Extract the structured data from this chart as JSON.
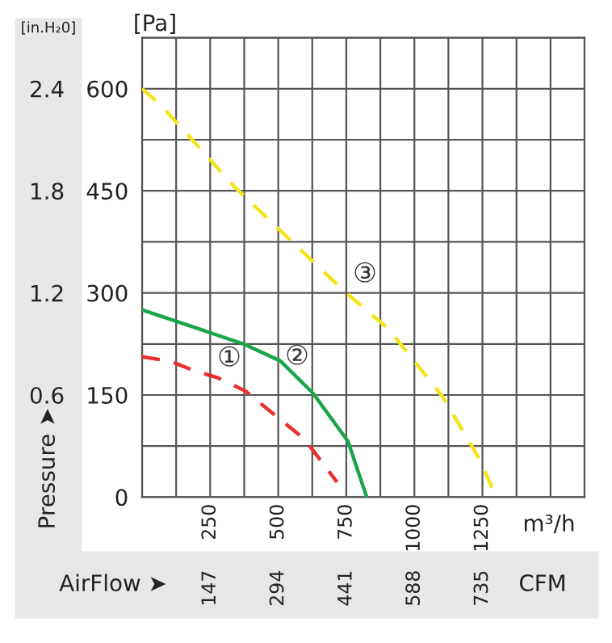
{
  "chart_data": {
    "type": "line",
    "xlabel": "m³/h",
    "x2label": "CFM",
    "ylabel": "[Pa]",
    "y2label": "[in.H₂0]",
    "xlim": [
      0,
      1625
    ],
    "xticks": [
      250,
      500,
      750,
      1000,
      1250
    ],
    "x2lim": [
      0,
      955.5
    ],
    "x2ticks": [
      147,
      294,
      441,
      588,
      735
    ],
    "ylim": [
      0,
      675
    ],
    "yticks": [
      0,
      150,
      300,
      450,
      600
    ],
    "y2lim": [
      0,
      2.7
    ],
    "y2ticks": [
      0.6,
      1.2,
      1.8,
      2.4
    ],
    "grid": true,
    "marker": "none",
    "series": [
      {
        "color": "#e8302f",
        "line_style": "dashed",
        "x": [
          0,
          101,
          190,
          280,
          379,
          597,
          716
        ],
        "values": [
          206,
          200,
          186,
          175,
          156,
          85,
          22
        ]
      },
      {
        "color": "#1aa549",
        "line_style": "solid",
        "x": [
          0,
          180,
          379,
          508,
          627,
          756,
          825
        ],
        "values": [
          275,
          251,
          224,
          200,
          153,
          82,
          0
        ]
      },
      {
        "color": "#f5e31a",
        "line_style": "dashed",
        "x": [
          0,
          71,
          339,
          617,
          750,
          905,
          1103,
          1242,
          1300
        ],
        "values": [
          600,
          575,
          456,
          350,
          300,
          247,
          148,
          54,
          0
        ]
      }
    ],
    "annotations": [
      "①",
      "②",
      "③",
      "Pressure ➤",
      "AirFlow ➤"
    ]
  }
}
